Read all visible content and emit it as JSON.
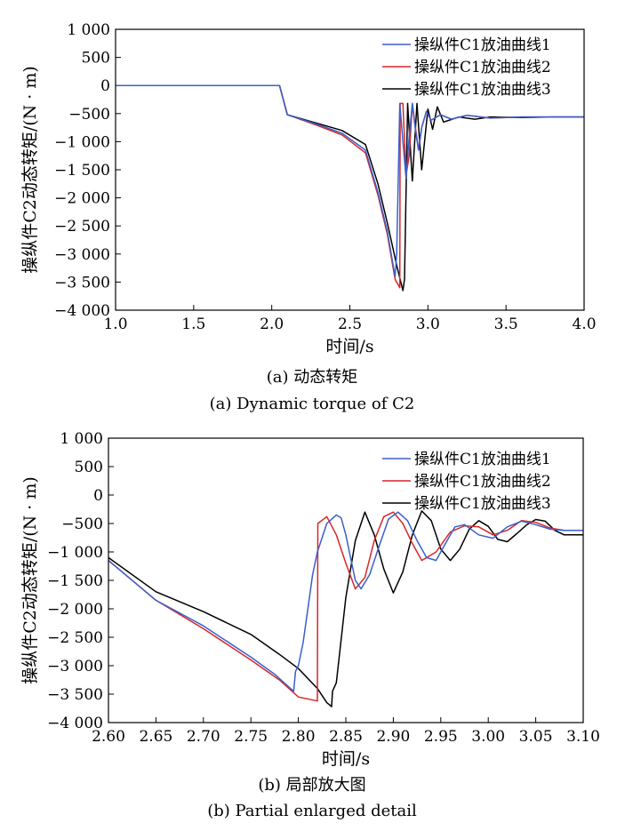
{
  "chart_data": [
    {
      "type": "line",
      "caption_cn": "(a) 动态转矩",
      "caption_en": "(a) Dynamic torque of C2",
      "xlabel": "时间/s",
      "ylabel": "操纵件C2动态转矩/(N · m)",
      "xlim": [
        1.0,
        4.0
      ],
      "ylim": [
        -4000,
        1000
      ],
      "xticks": [
        "1.0",
        "1.5",
        "2.0",
        "2.5",
        "3.0",
        "3.5",
        "4.0"
      ],
      "yticks": [
        "1 000",
        "500",
        "0",
        "−500",
        "−1 000",
        "−1 500",
        "−2 000",
        "−2 500",
        "−3 000",
        "−3 500",
        "−4 000"
      ],
      "legend_position": "top-right",
      "series": [
        {
          "name": "操纵件C1放油曲线1",
          "color": "#3a5fcd",
          "x": [
            1.0,
            2.05,
            2.1,
            2.3,
            2.45,
            2.6,
            2.68,
            2.74,
            2.79,
            2.8,
            2.82,
            2.84,
            2.86,
            2.88,
            2.9,
            2.92,
            2.94,
            2.96,
            2.99,
            3.02,
            3.08,
            3.15,
            3.25,
            3.4,
            3.6,
            3.8,
            4.0
          ],
          "y": [
            0,
            0,
            -520,
            -700,
            -850,
            -1150,
            -1900,
            -2600,
            -3400,
            -3000,
            -320,
            -1000,
            -1650,
            -900,
            -320,
            -800,
            -1150,
            -750,
            -460,
            -620,
            -520,
            -600,
            -530,
            -580,
            -560,
            -560,
            -560
          ]
        },
        {
          "name": "操纵件C1放油曲线2",
          "color": "#d62728",
          "x": [
            1.0,
            2.05,
            2.1,
            2.3,
            2.45,
            2.6,
            2.68,
            2.74,
            2.79,
            2.82,
            2.822,
            2.84,
            2.86,
            2.88,
            2.9,
            2.92,
            2.94,
            2.96,
            2.99,
            3.02,
            3.08,
            3.15,
            3.25,
            3.4,
            3.6,
            3.8,
            4.0
          ],
          "y": [
            0,
            0,
            -520,
            -720,
            -880,
            -1200,
            -1950,
            -2650,
            -3450,
            -3600,
            -320,
            -320,
            -1600,
            -1250,
            -320,
            -750,
            -1150,
            -750,
            -460,
            -620,
            -520,
            -600,
            -530,
            -580,
            -560,
            -560,
            -560
          ]
        },
        {
          "name": "操纵件C1放油曲线3",
          "color": "#000000",
          "x": [
            1.0,
            2.05,
            2.1,
            2.3,
            2.45,
            2.6,
            2.68,
            2.74,
            2.8,
            2.84,
            2.85,
            2.87,
            2.9,
            2.93,
            2.96,
            3.0,
            3.03,
            3.06,
            3.1,
            3.2,
            3.3,
            3.4,
            3.6,
            3.8,
            4.0
          ],
          "y": [
            0,
            0,
            -520,
            -680,
            -800,
            -1050,
            -1750,
            -2450,
            -3200,
            -3650,
            -3450,
            -320,
            -1700,
            -320,
            -1500,
            -420,
            -780,
            -380,
            -650,
            -560,
            -600,
            -560,
            -570,
            -560,
            -560
          ]
        }
      ]
    },
    {
      "type": "line",
      "caption_cn": "(b) 局部放大图",
      "caption_en": "(b) Partial enlarged detail",
      "xlabel": "时间/s",
      "ylabel": "操纵件C2动态转矩/(N · m)",
      "xlim": [
        2.6,
        3.1
      ],
      "ylim": [
        -4000,
        1000
      ],
      "xticks": [
        "2.60",
        "2.65",
        "2.70",
        "2.75",
        "2.80",
        "2.85",
        "2.90",
        "2.95",
        "3.00",
        "3.05",
        "3.10"
      ],
      "yticks": [
        "1 000",
        "500",
        "0",
        "−500",
        "−1 000",
        "−1 500",
        "−2 000",
        "−2 500",
        "−3 000",
        "−3 500",
        "−4 000"
      ],
      "legend_position": "top-right",
      "series": [
        {
          "name": "操纵件C1放油曲线1",
          "color": "#3a5fcd",
          "x": [
            2.6,
            2.65,
            2.7,
            2.75,
            2.775,
            2.795,
            2.797,
            2.8,
            2.805,
            2.81,
            2.815,
            2.82,
            2.83,
            2.84,
            2.845,
            2.85,
            2.855,
            2.86,
            2.866,
            2.875,
            2.885,
            2.895,
            2.905,
            2.915,
            2.925,
            2.935,
            2.945,
            2.955,
            2.965,
            2.975,
            2.99,
            3.005,
            3.02,
            3.035,
            3.05,
            3.065,
            3.08,
            3.1
          ],
          "y": [
            -1150,
            -1850,
            -2300,
            -2850,
            -3150,
            -3450,
            -3100,
            -3000,
            -2600,
            -2000,
            -1400,
            -1000,
            -500,
            -350,
            -400,
            -700,
            -1100,
            -1500,
            -1650,
            -1400,
            -900,
            -420,
            -300,
            -450,
            -800,
            -1100,
            -1150,
            -850,
            -560,
            -520,
            -700,
            -760,
            -560,
            -460,
            -520,
            -600,
            -620,
            -620
          ]
        },
        {
          "name": "操纵件C1放油曲线2",
          "color": "#d62728",
          "x": [
            2.6,
            2.65,
            2.7,
            2.75,
            2.78,
            2.8,
            2.82,
            2.8205,
            2.83,
            2.84,
            2.85,
            2.86,
            2.87,
            2.88,
            2.89,
            2.9,
            2.91,
            2.92,
            2.93,
            2.945,
            2.96,
            2.975,
            2.99,
            3.005,
            3.02,
            3.035,
            3.05,
            3.065,
            3.08,
            3.1
          ],
          "y": [
            -1150,
            -1850,
            -2350,
            -2900,
            -3250,
            -3550,
            -3620,
            -500,
            -380,
            -700,
            -1200,
            -1650,
            -1450,
            -800,
            -380,
            -300,
            -500,
            -850,
            -1150,
            -1000,
            -650,
            -540,
            -560,
            -700,
            -620,
            -450,
            -480,
            -580,
            -620,
            -620
          ]
        },
        {
          "name": "操纵件C1放油曲线3",
          "color": "#000000",
          "x": [
            2.6,
            2.65,
            2.7,
            2.75,
            2.78,
            2.8,
            2.82,
            2.83,
            2.835,
            2.836,
            2.84,
            2.85,
            2.86,
            2.87,
            2.88,
            2.89,
            2.9,
            2.91,
            2.92,
            2.93,
            2.94,
            2.95,
            2.96,
            2.97,
            2.98,
            2.99,
            3.0,
            3.01,
            3.02,
            3.03,
            3.04,
            3.05,
            3.06,
            3.07,
            3.08,
            3.09,
            3.1
          ],
          "y": [
            -1100,
            -1700,
            -2050,
            -2450,
            -2800,
            -3050,
            -3400,
            -3650,
            -3720,
            -3450,
            -3300,
            -1800,
            -800,
            -300,
            -700,
            -1300,
            -1720,
            -1350,
            -700,
            -280,
            -450,
            -950,
            -1150,
            -950,
            -600,
            -450,
            -550,
            -780,
            -820,
            -680,
            -530,
            -430,
            -460,
            -620,
            -700,
            -700,
            -700
          ]
        }
      ]
    }
  ]
}
